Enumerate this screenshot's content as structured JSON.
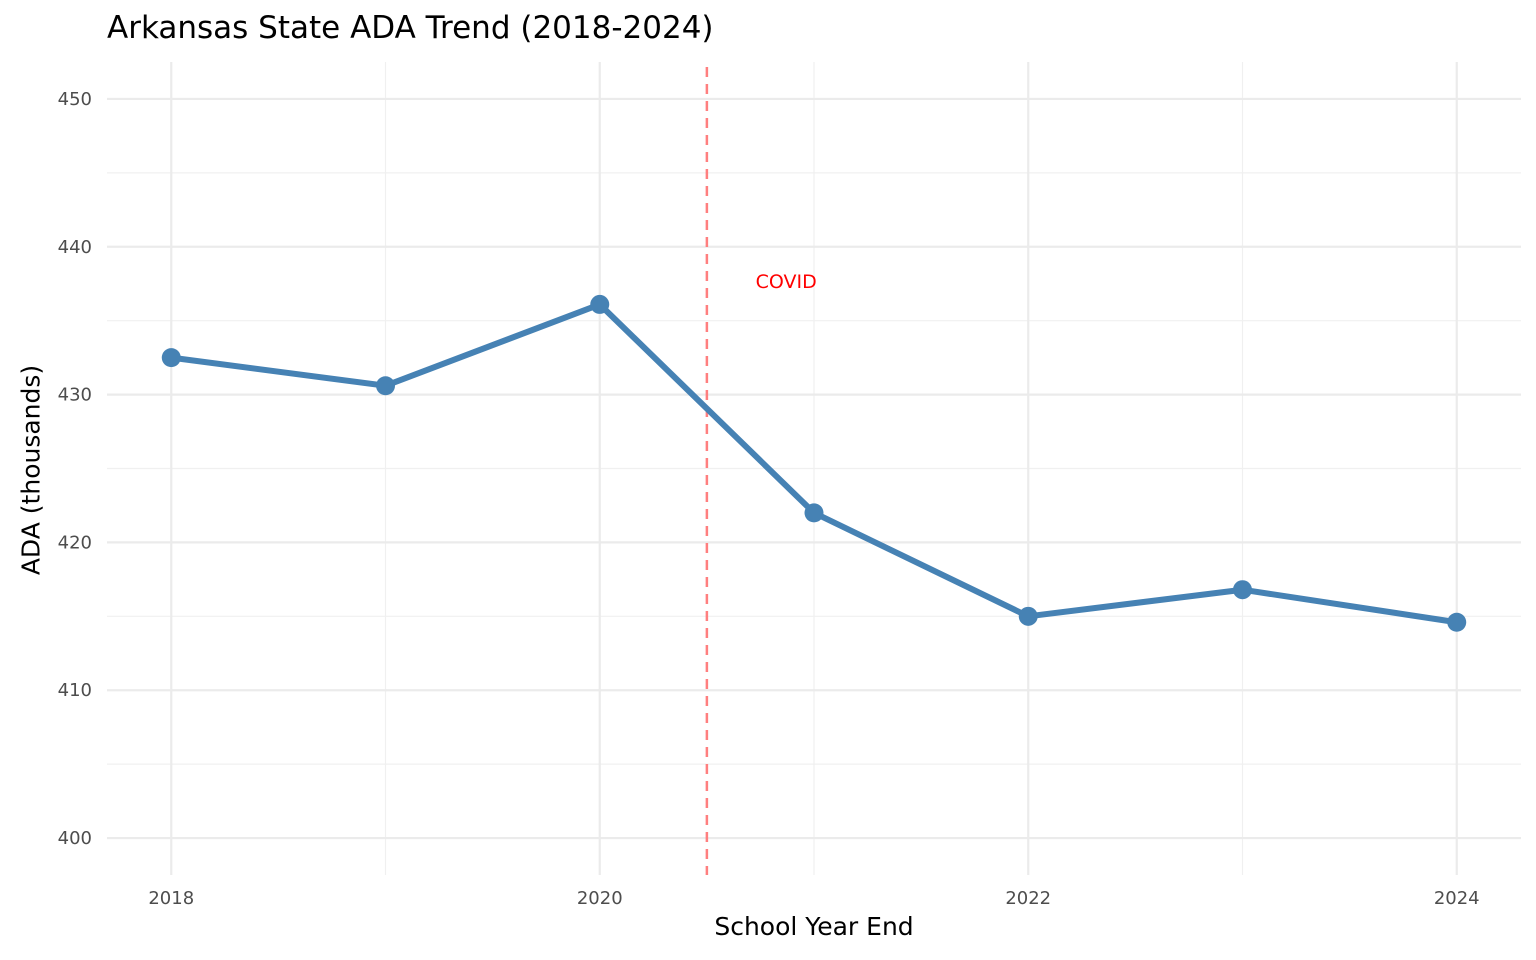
{
  "chart_data": {
    "type": "line",
    "title": "Arkansas State ADA Trend (2018-2024)",
    "xlabel": "School Year End",
    "ylabel": "ADA (thousands)",
    "x": [
      2018,
      2019,
      2020,
      2021,
      2022,
      2023,
      2024
    ],
    "series": [
      {
        "values": [
          432.5,
          430.6,
          436.1,
          422.0,
          415.0,
          416.8,
          414.6
        ],
        "color": "#4682B4"
      }
    ],
    "xlim": [
      2017.7,
      2024.3
    ],
    "ylim": [
      397.5,
      452.5
    ],
    "xticks": [
      2018,
      2020,
      2022,
      2024
    ],
    "yticks": [
      400,
      410,
      420,
      430,
      440,
      450
    ],
    "grid": true,
    "annotations": [
      {
        "type": "vline",
        "x": 2020.5,
        "color": "#FF7F7F",
        "style": "dashed"
      },
      {
        "type": "text",
        "text": "COVID",
        "x": 2020.87,
        "y": 437.7,
        "color": "#FF0000"
      }
    ]
  }
}
